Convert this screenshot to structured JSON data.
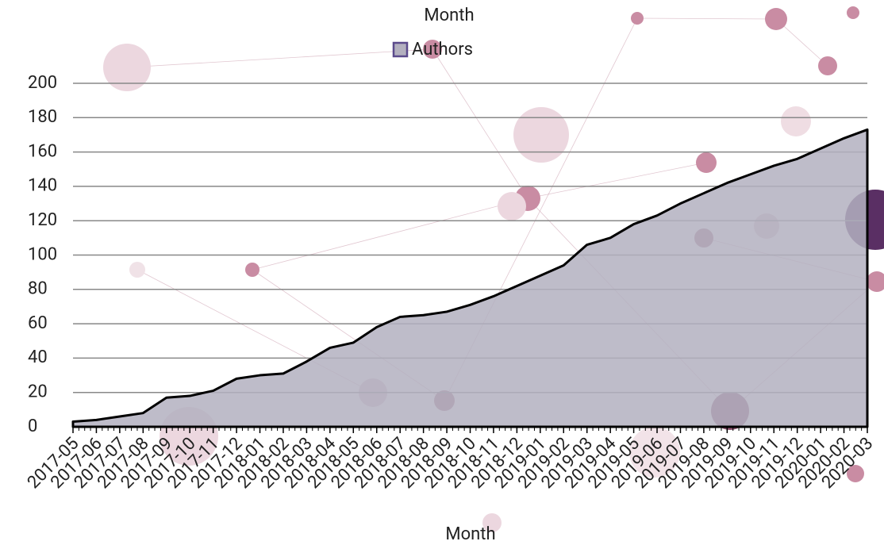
{
  "chart_data": {
    "type": "area",
    "title": "Month",
    "x_label": "Month",
    "categories": [
      "2017-05",
      "2017-06",
      "2017-07",
      "2017-08",
      "2017-09",
      "2017-10",
      "2017-11",
      "2017-12",
      "2018-01",
      "2018-02",
      "2018-03",
      "2018-04",
      "2018-05",
      "2018-06",
      "2018-07",
      "2018-08",
      "2018-09",
      "2018-10",
      "2018-11",
      "2018-12",
      "2019-01",
      "2019-02",
      "2019-03",
      "2019-04",
      "2019-05",
      "2019-06",
      "2019-07",
      "2019-08",
      "2019-09",
      "2019-10",
      "2019-11",
      "2019-12",
      "2020-01",
      "2020-02",
      "2020-03"
    ],
    "series": [
      {
        "name": "Authors",
        "color": "#b3b0bf",
        "values": [
          3,
          4,
          6,
          8,
          17,
          18,
          21,
          28,
          30,
          31,
          38,
          46,
          49,
          58,
          64,
          65,
          67,
          71,
          76,
          82,
          88,
          94,
          106,
          110,
          118,
          123,
          130,
          136,
          142,
          147,
          152,
          156,
          162,
          168,
          173
        ]
      }
    ],
    "ylim": [
      0,
      200
    ],
    "yticks": [
      0,
      20,
      40,
      60,
      80,
      100,
      120,
      140,
      160,
      180,
      200
    ],
    "grid": true,
    "legend": "top"
  }
}
